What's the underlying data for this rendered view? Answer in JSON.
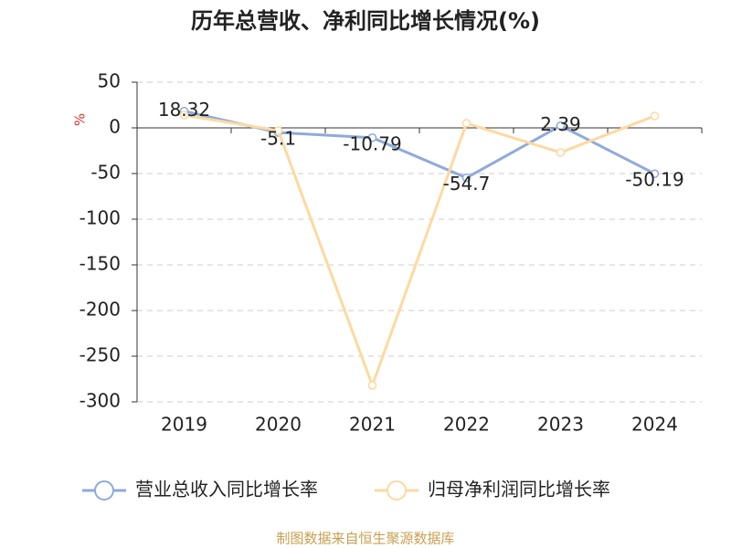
{
  "chart_data": {
    "type": "line",
    "title": "历年总营收、净利同比增长情况(%)",
    "y_label": "%",
    "categories": [
      "2019",
      "2020",
      "2021",
      "2022",
      "2023",
      "2024"
    ],
    "series": [
      {
        "name": "营业总收入同比增长率",
        "color": "#8faadc",
        "show_labels": true,
        "values": [
          18.32,
          -5.1,
          -10.79,
          -54.7,
          2.39,
          -50.19
        ]
      },
      {
        "name": "归母净利润同比增长率",
        "color": "#fdd9a0",
        "show_labels": false,
        "values": [
          14,
          -3,
          -282,
          5,
          -27,
          13
        ]
      }
    ],
    "ylim": [
      -300,
      50
    ],
    "yticks": [
      50,
      0,
      -50,
      -100,
      -150,
      -200,
      -250,
      -300
    ],
    "grid": true,
    "legend": "bottom",
    "source": "制图数据来自恒生聚源数据库"
  }
}
